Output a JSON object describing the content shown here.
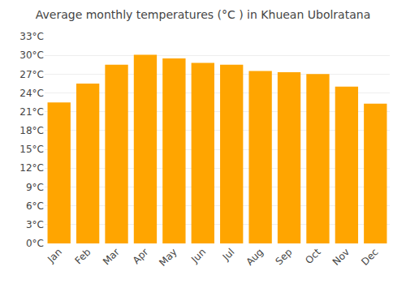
{
  "chart_data": {
    "type": "bar",
    "title": "Average monthly temperatures (°C ) in Khuean Ubolratana",
    "categories": [
      "Jan",
      "Feb",
      "Mar",
      "Apr",
      "May",
      "Jun",
      "Jul",
      "Aug",
      "Sep",
      "Oct",
      "Nov",
      "Dec"
    ],
    "values": [
      22.5,
      25.5,
      28.5,
      30.1,
      29.5,
      28.8,
      28.5,
      27.5,
      27.3,
      27.0,
      25.0,
      22.3
    ],
    "color": "#FFA500",
    "ylim": [
      0,
      33
    ],
    "yticks": [
      {
        "value": 0,
        "label": "0°C"
      },
      {
        "value": 3,
        "label": "3°C"
      },
      {
        "value": 6,
        "label": "6°C"
      },
      {
        "value": 9,
        "label": "9°C"
      },
      {
        "value": 12,
        "label": "12°C"
      },
      {
        "value": 15,
        "label": "15°C"
      },
      {
        "value": 18,
        "label": "18°C"
      },
      {
        "value": 21,
        "label": "21°C"
      },
      {
        "value": 24,
        "label": "24°C"
      },
      {
        "value": 27,
        "label": "27°C"
      },
      {
        "value": 30,
        "label": "30°C"
      },
      {
        "value": 33,
        "label": "33°C"
      }
    ],
    "grid": true
  }
}
